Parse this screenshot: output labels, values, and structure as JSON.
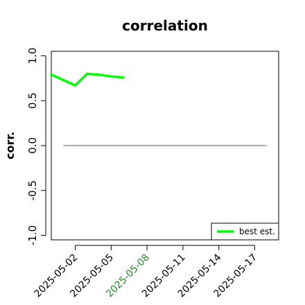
{
  "chart_data": {
    "type": "line",
    "title": "correlation",
    "xlabel": "",
    "ylabel": "corr.",
    "ylim": [
      -1.05,
      1.05
    ],
    "xlim": [
      "2025-04-30",
      "2025-05-19"
    ],
    "yticks": [
      -1.0,
      -0.5,
      0.0,
      0.5,
      1.0
    ],
    "ytick_labels": [
      "-1.0",
      "-0.5",
      "0.0",
      "0.5",
      "1.0"
    ],
    "xticks": [
      "2025-05-02",
      "2025-05-05",
      "2025-05-08",
      "2025-05-11",
      "2025-05-14",
      "2025-05-17"
    ],
    "highlight_tick": "2025-05-08",
    "highlight_color": "#228B22",
    "reference_line": {
      "y": 0.0,
      "x_from": "2025-05-01",
      "x_to": "2025-05-18",
      "color": "#555555"
    },
    "grid": false,
    "legend_position": "bottom-right",
    "series": [
      {
        "name": "best est.",
        "color": "#00ff00",
        "x": [
          "2025-05-00",
          "2025-05-01",
          "2025-05-02",
          "2025-05-03",
          "2025-05-04",
          "2025-05-05",
          "2025-05-06"
        ],
        "values": [
          0.79,
          0.73,
          0.67,
          0.8,
          0.79,
          0.77,
          0.76
        ]
      }
    ]
  }
}
